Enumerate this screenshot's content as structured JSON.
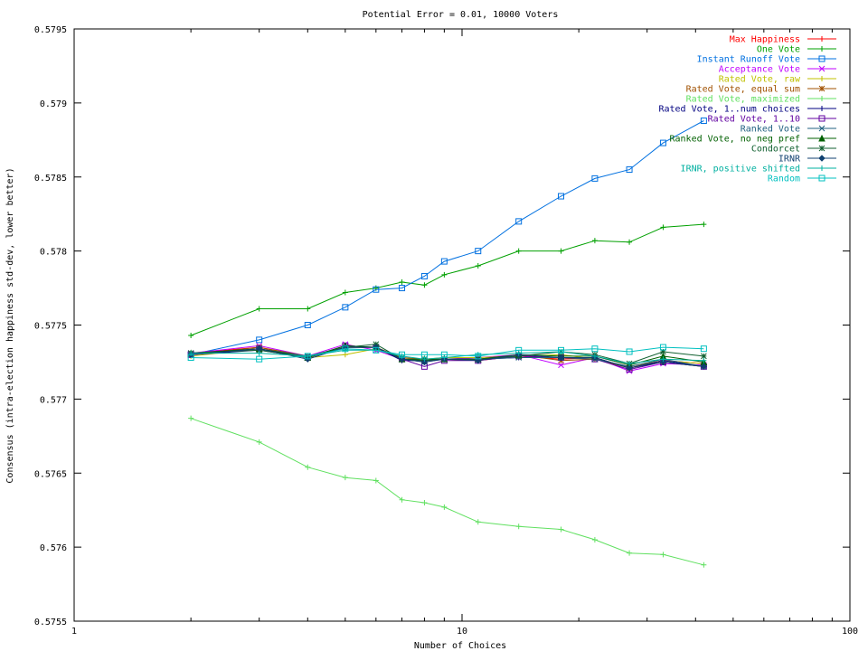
{
  "chart_data": {
    "type": "line",
    "title": "Potential Error = 0.01, 10000 Voters",
    "xlabel": "Number of Choices",
    "ylabel": "Consensus (intra-election happiness std-dev, lower better)",
    "xscale": "log",
    "xlim": [
      1,
      100
    ],
    "ylim": [
      0.5755,
      0.5795
    ],
    "xticks": [
      1,
      10,
      100
    ],
    "xtick_labels": [
      "1",
      "10",
      "100"
    ],
    "yticks": [
      0.5755,
      0.576,
      0.5765,
      0.577,
      0.5775,
      0.578,
      0.5785,
      0.579,
      0.5795
    ],
    "ytick_labels": [
      "0.5755",
      "0.576",
      "0.5765",
      "0.577",
      "0.5775",
      "0.578",
      "0.5785",
      "0.579",
      "0.5795"
    ],
    "grid": false,
    "legend_position": "top-right",
    "x": [
      2,
      3,
      4,
      5,
      6,
      7,
      8,
      9,
      11,
      14,
      18,
      22,
      27,
      33,
      42
    ],
    "series": [
      {
        "name": "Max Happiness",
        "color": "#ff0000",
        "marker": "plus",
        "values": [
          0.57731,
          0.57735,
          0.57728,
          0.57735,
          0.57735,
          0.57727,
          0.57726,
          0.57727,
          0.57726,
          0.57729,
          0.57727,
          0.57728,
          0.57721,
          0.57726,
          0.57724
        ]
      },
      {
        "name": "One Vote",
        "color": "#00a000",
        "marker": "plus",
        "values": [
          0.57743,
          0.57761,
          0.57761,
          0.57772,
          0.57775,
          0.57779,
          0.57777,
          0.57784,
          0.5779,
          0.578,
          0.578,
          0.57807,
          0.57806,
          0.57816,
          0.57818
        ]
      },
      {
        "name": "Instant Runoff Vote",
        "color": "#0070e0",
        "marker": "square",
        "values": [
          0.5773,
          0.5774,
          0.5775,
          0.57762,
          0.57774,
          0.57775,
          0.57783,
          0.57793,
          0.578,
          0.5782,
          0.57837,
          0.57849,
          0.57855,
          0.57873,
          0.57888
        ]
      },
      {
        "name": "Acceptance Vote",
        "color": "#c000ff",
        "marker": "x",
        "values": [
          0.57731,
          0.57736,
          0.57729,
          0.57737,
          0.57733,
          0.57727,
          0.57726,
          0.57727,
          0.57728,
          0.5773,
          0.57723,
          0.57728,
          0.57719,
          0.57724,
          0.57723
        ]
      },
      {
        "name": "Rated Vote, raw",
        "color": "#c0c000",
        "marker": "plus",
        "values": [
          0.57729,
          0.57734,
          0.57728,
          0.5773,
          0.57734,
          0.57727,
          0.57727,
          0.57728,
          0.57728,
          0.57729,
          0.5773,
          0.57727,
          0.57722,
          0.57726,
          0.57724
        ]
      },
      {
        "name": "Rated Vote, equal sum",
        "color": "#a05000",
        "marker": "star",
        "values": [
          0.5773,
          0.57735,
          0.57729,
          0.57735,
          0.57735,
          0.57728,
          0.57727,
          0.57727,
          0.57727,
          0.5773,
          0.57726,
          0.57727,
          0.57721,
          0.57725,
          0.57722
        ]
      },
      {
        "name": "Rated Vote, maximized",
        "color": "#60e060",
        "marker": "plus",
        "values": [
          0.57687,
          0.57671,
          0.57654,
          0.57647,
          0.57645,
          0.57632,
          0.5763,
          0.57627,
          0.57617,
          0.57614,
          0.57612,
          0.57605,
          0.57596,
          0.57595,
          0.57588
        ]
      },
      {
        "name": "Rated Vote, 1..num choices",
        "color": "#000080",
        "marker": "plus",
        "values": [
          0.5773,
          0.57733,
          0.57728,
          0.57735,
          0.57735,
          0.57726,
          0.57726,
          0.57727,
          0.57727,
          0.57728,
          0.57728,
          0.57728,
          0.57721,
          0.57726,
          0.57722
        ]
      },
      {
        "name": "Rated Vote, 1..10",
        "color": "#6000a0",
        "marker": "square",
        "values": [
          0.5773,
          0.57734,
          0.57728,
          0.57736,
          0.57735,
          0.57727,
          0.57722,
          0.57726,
          0.57726,
          0.57729,
          0.57728,
          0.57727,
          0.5772,
          0.57725,
          0.57722
        ]
      },
      {
        "name": "Ranked Vote",
        "color": "#206080",
        "marker": "x",
        "values": [
          0.57731,
          0.57734,
          0.57729,
          0.57735,
          0.57735,
          0.57727,
          0.57725,
          0.57727,
          0.57727,
          0.57728,
          0.57728,
          0.57727,
          0.57722,
          0.57727,
          0.57722
        ]
      },
      {
        "name": "Ranked Vote, no neg pref",
        "color": "#006000",
        "marker": "triangle",
        "values": [
          0.57731,
          0.57734,
          0.57728,
          0.57736,
          0.57735,
          0.57727,
          0.57727,
          0.57727,
          0.57727,
          0.5773,
          0.57729,
          0.57729,
          0.57723,
          0.57729,
          0.57725
        ]
      },
      {
        "name": "Condorcet",
        "color": "#106030",
        "marker": "star",
        "values": [
          0.57731,
          0.57733,
          0.57728,
          0.57735,
          0.57737,
          0.57727,
          0.57726,
          0.57727,
          0.57727,
          0.57729,
          0.57732,
          0.5773,
          0.57724,
          0.57732,
          0.57729
        ]
      },
      {
        "name": "IRNR",
        "color": "#104070",
        "marker": "diamond",
        "values": [
          0.5773,
          0.57734,
          0.57727,
          0.57735,
          0.57735,
          0.57727,
          0.57725,
          0.57727,
          0.57726,
          0.5773,
          0.57728,
          0.57728,
          0.57721,
          0.57725,
          0.57722
        ]
      },
      {
        "name": "IRNR, positive shifted",
        "color": "#00b0a0",
        "marker": "plus",
        "values": [
          0.57731,
          0.57731,
          0.57729,
          0.57733,
          0.57733,
          0.57729,
          0.57727,
          0.57728,
          0.5773,
          0.57731,
          0.57732,
          0.57729,
          0.57724,
          0.57727,
          0.57726
        ]
      },
      {
        "name": "Random",
        "color": "#00c0c0",
        "marker": "square",
        "values": [
          0.57728,
          0.57727,
          0.57729,
          0.57734,
          0.57733,
          0.5773,
          0.5773,
          0.5773,
          0.57729,
          0.57733,
          0.57733,
          0.57734,
          0.57732,
          0.57735,
          0.57734
        ]
      }
    ]
  }
}
